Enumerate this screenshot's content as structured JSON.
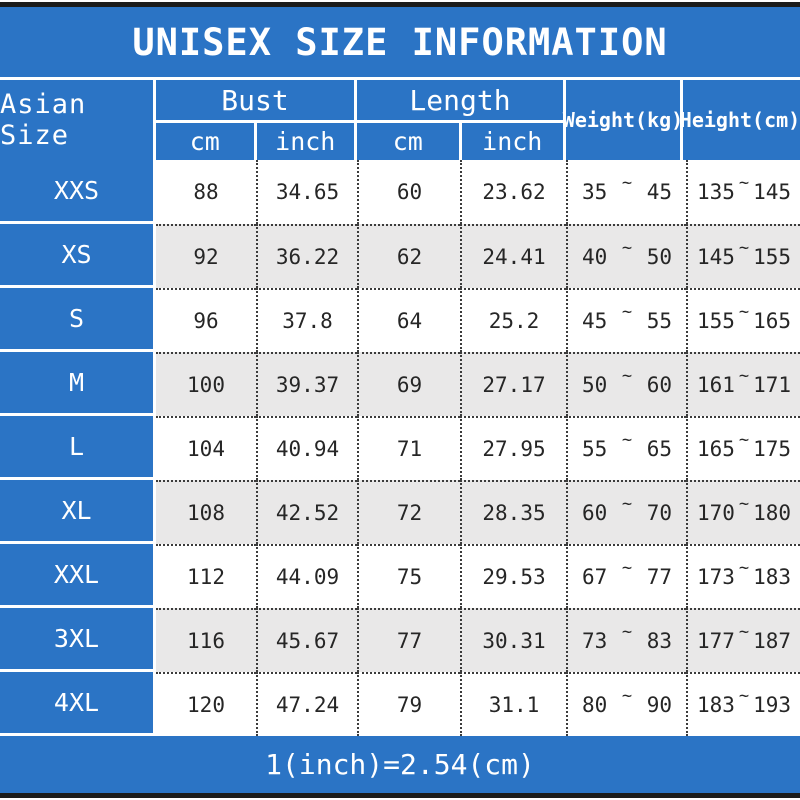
{
  "title": "UNISEX SIZE INFORMATION",
  "footer_note": "1(inch)=2.54(cm)",
  "ui": {
    "tilde": "~"
  },
  "colors": {
    "blue": "#2b74c5",
    "row_alt_gray": "#e9e8e8",
    "edge_bar_black": "#1b1b1b",
    "text_dark": "#262626",
    "text_white": "#ffffff"
  },
  "table": {
    "corner_header": "Asian Size",
    "groups": [
      {
        "label": "Bust",
        "sub": [
          "cm",
          "inch"
        ]
      },
      {
        "label": "Length",
        "sub": [
          "cm",
          "inch"
        ]
      }
    ],
    "single_headers": [
      "Weight(kg)",
      "Height(cm)"
    ],
    "rows": [
      {
        "size": "XXS",
        "bust_cm": "88",
        "bust_inch": "34.65",
        "length_cm": "60",
        "length_inch": "23.62",
        "weight_min": "35",
        "weight_max": "45",
        "height_min": "135",
        "height_max": "145"
      },
      {
        "size": "XS",
        "bust_cm": "92",
        "bust_inch": "36.22",
        "length_cm": "62",
        "length_inch": "24.41",
        "weight_min": "40",
        "weight_max": "50",
        "height_min": "145",
        "height_max": "155"
      },
      {
        "size": "S",
        "bust_cm": "96",
        "bust_inch": "37.8",
        "length_cm": "64",
        "length_inch": "25.2",
        "weight_min": "45",
        "weight_max": "55",
        "height_min": "155",
        "height_max": "165"
      },
      {
        "size": "M",
        "bust_cm": "100",
        "bust_inch": "39.37",
        "length_cm": "69",
        "length_inch": "27.17",
        "weight_min": "50",
        "weight_max": "60",
        "height_min": "161",
        "height_max": "171"
      },
      {
        "size": "L",
        "bust_cm": "104",
        "bust_inch": "40.94",
        "length_cm": "71",
        "length_inch": "27.95",
        "weight_min": "55",
        "weight_max": "65",
        "height_min": "165",
        "height_max": "175"
      },
      {
        "size": "XL",
        "bust_cm": "108",
        "bust_inch": "42.52",
        "length_cm": "72",
        "length_inch": "28.35",
        "weight_min": "60",
        "weight_max": "70",
        "height_min": "170",
        "height_max": "180"
      },
      {
        "size": "XXL",
        "bust_cm": "112",
        "bust_inch": "44.09",
        "length_cm": "75",
        "length_inch": "29.53",
        "weight_min": "67",
        "weight_max": "77",
        "height_min": "173",
        "height_max": "183"
      },
      {
        "size": "3XL",
        "bust_cm": "116",
        "bust_inch": "45.67",
        "length_cm": "77",
        "length_inch": "30.31",
        "weight_min": "73",
        "weight_max": "83",
        "height_min": "177",
        "height_max": "187"
      },
      {
        "size": "4XL",
        "bust_cm": "120",
        "bust_inch": "47.24",
        "length_cm": "79",
        "length_inch": "31.1",
        "weight_min": "80",
        "weight_max": "90",
        "height_min": "183",
        "height_max": "193"
      }
    ]
  }
}
